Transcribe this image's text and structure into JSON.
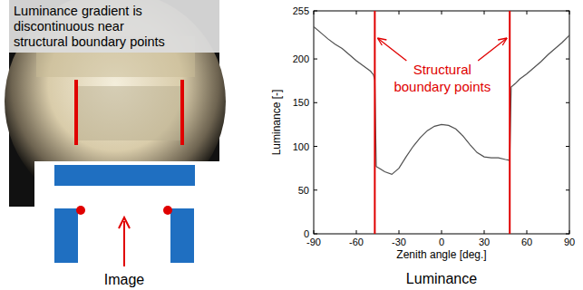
{
  "left_panel": {
    "callout": [
      "Luminance gradient is",
      "discontinuous near",
      "structural boundary points"
    ],
    "diagram_label": "Image"
  },
  "chart_data": {
    "type": "line",
    "title": "Luminance",
    "x_label": "Zenith angle [deg.]",
    "y_label": "Luminance [-]",
    "xlim": [
      -90,
      90
    ],
    "xticks": [
      -90,
      -60,
      -30,
      0,
      30,
      60,
      90
    ],
    "ylim": [
      0,
      255
    ],
    "yticks": [
      0,
      50,
      100,
      150,
      200,
      255
    ],
    "grid": false,
    "color": "#505050",
    "x": [
      -90,
      -85,
      -80,
      -75,
      -70,
      -65,
      -60,
      -55,
      -50,
      -48,
      -47,
      -46,
      -43,
      -40,
      -35,
      -30,
      -25,
      -20,
      -15,
      -10,
      -5,
      0,
      5,
      10,
      15,
      20,
      25,
      30,
      35,
      40,
      45,
      48,
      49,
      52,
      55,
      60,
      65,
      70,
      75,
      80,
      85,
      90
    ],
    "values": [
      237,
      230,
      223,
      217,
      212,
      205,
      198,
      192,
      186,
      182,
      176,
      77,
      74,
      71,
      68,
      75,
      88,
      100,
      110,
      118,
      123,
      125,
      124,
      120,
      112,
      102,
      93,
      88,
      87,
      87,
      85,
      84,
      168,
      172,
      177,
      183,
      190,
      197,
      205,
      212,
      219,
      227
    ],
    "boundary_lines": {
      "label": "Structural boundary points",
      "x": [
        -47,
        48
      ],
      "color": "#e00000"
    }
  }
}
